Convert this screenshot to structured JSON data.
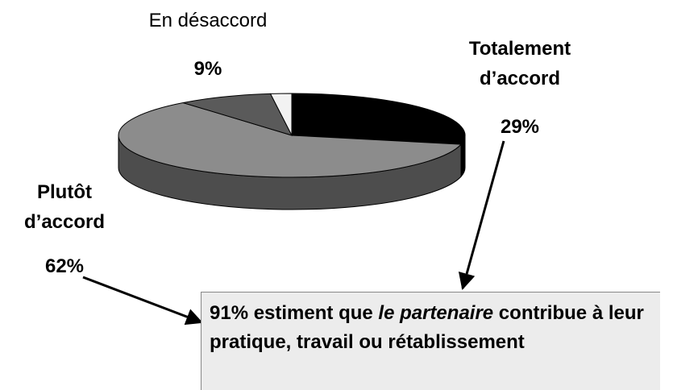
{
  "chart_data": {
    "type": "pie3d",
    "categories": [
      "Totalement d’accord",
      "Plutôt d’accord",
      "En désaccord",
      null
    ],
    "values": [
      29,
      62,
      9,
      2
    ],
    "value_labels": [
      "29%",
      "62%",
      "9%",
      null
    ],
    "colors": [
      "#000000",
      "#8c8c8c",
      "#5a5a5a",
      "#f2f2f2"
    ],
    "annotation": {
      "bold_start": "91% estiment que ",
      "italic": "le partenaire",
      "bold_end": " contribue à leur pratique, travail ou rétablissement"
    }
  }
}
